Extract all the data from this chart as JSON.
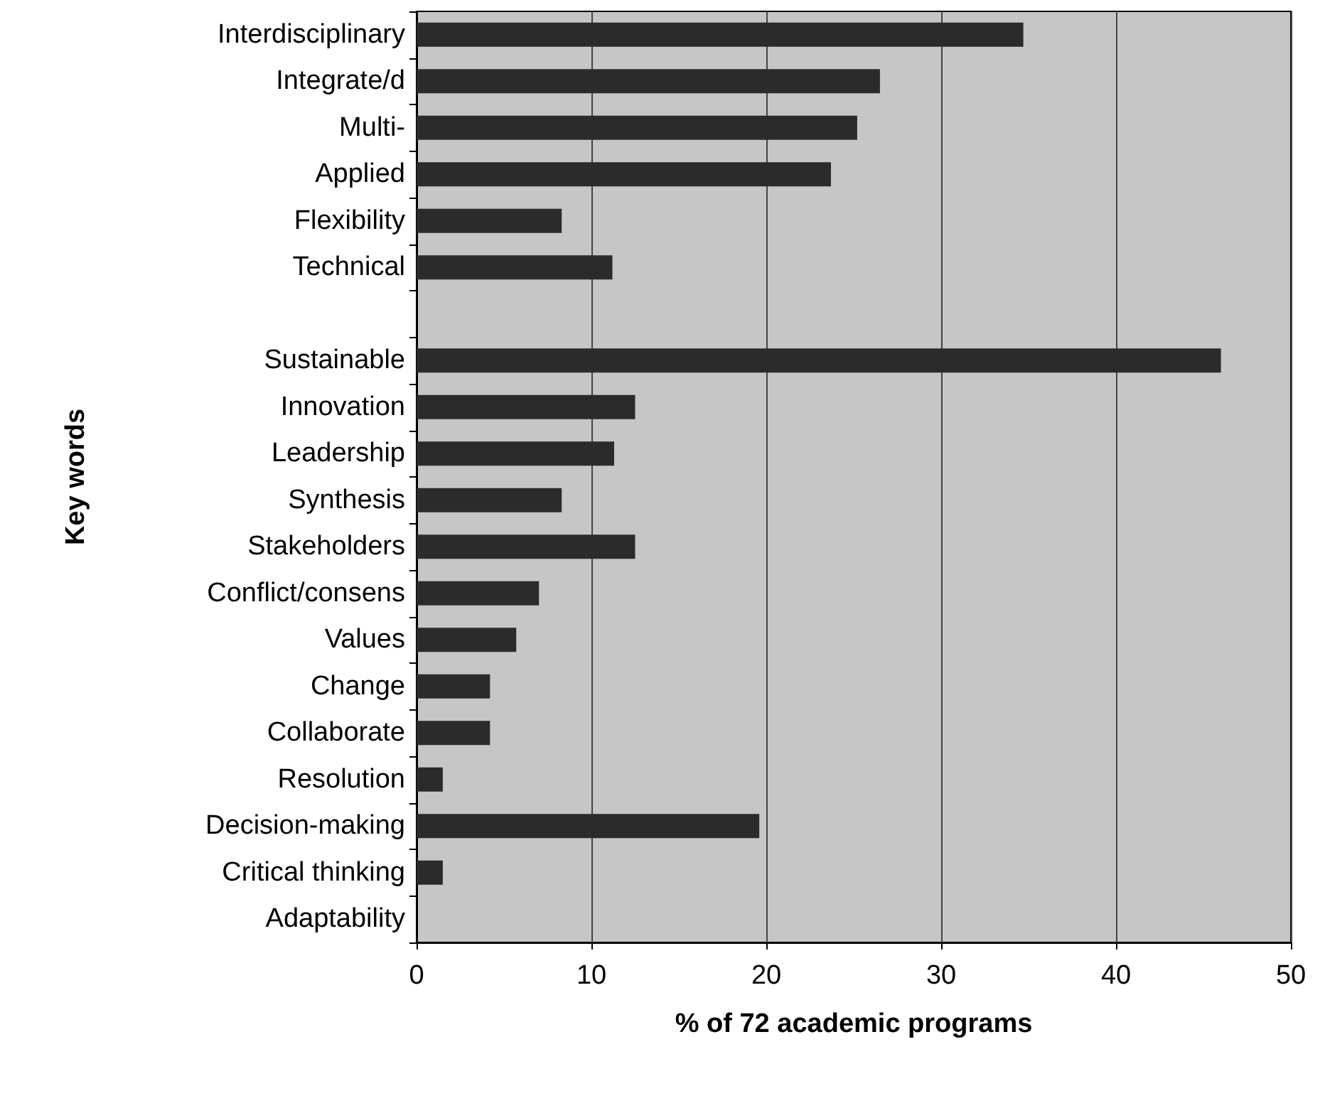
{
  "chart_data": {
    "type": "bar",
    "orientation": "horizontal",
    "xlabel": "% of 72 academic programs",
    "ylabel": "Key words",
    "categories": [
      "Interdisciplinary",
      "Integrate/d",
      "Multi-",
      "Applied",
      "Flexibility",
      "Technical",
      null,
      "Sustainable",
      "Innovation",
      "Leadership",
      "Synthesis",
      "Stakeholders",
      "Conflict/consens",
      "Values",
      "Change",
      "Collaborate",
      "Resolution",
      "Decision-making",
      "Critical thinking",
      "Adaptability"
    ],
    "values": [
      34.7,
      26.5,
      25.2,
      23.7,
      8.3,
      11.2,
      null,
      46.0,
      12.5,
      11.3,
      8.3,
      12.5,
      7.0,
      5.7,
      4.2,
      4.2,
      1.5,
      19.6,
      1.5,
      0
    ],
    "color": "#2b2b2b",
    "xlim": [
      0,
      50
    ],
    "xticks": [
      0,
      10,
      20,
      30,
      40,
      50
    ],
    "grid": "x"
  }
}
